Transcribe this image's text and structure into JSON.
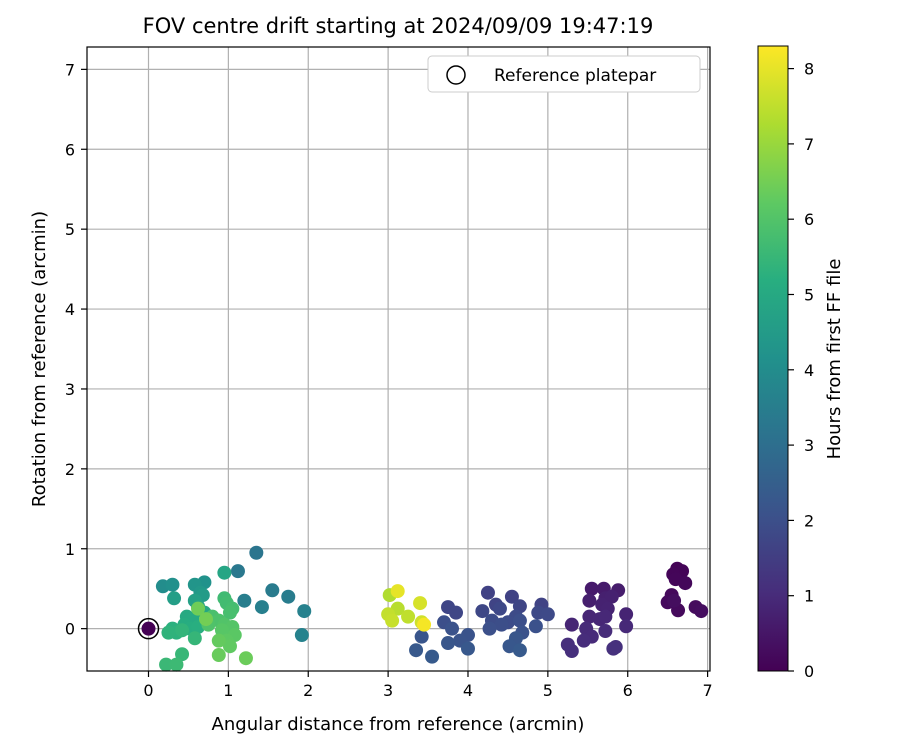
{
  "chart_data": {
    "type": "scatter",
    "title": "FOV centre drift starting at 2024/09/09 19:47:19",
    "xlabel": "Angular distance from reference (arcmin)",
    "ylabel": "Rotation from reference (arcmin)",
    "xlim": [
      -0.77,
      7.03
    ],
    "ylim": [
      -0.53,
      7.28
    ],
    "xticks": [
      0,
      1,
      2,
      3,
      4,
      5,
      6,
      7
    ],
    "yticks": [
      0,
      1,
      2,
      3,
      4,
      5,
      6,
      7
    ],
    "grid": true,
    "legend": {
      "position": "top-right",
      "entries": [
        "Reference platepar"
      ]
    },
    "reference_point": {
      "x": 0,
      "y": 0,
      "hours": 0
    },
    "colorbar": {
      "label": "Hours from first FF file",
      "colormap": "viridis",
      "range": [
        0,
        8.3
      ],
      "ticks": [
        0,
        1,
        2,
        3,
        4,
        5,
        6,
        7,
        8
      ]
    },
    "points": [
      {
        "x": 6.62,
        "y": 0.75,
        "c": 0.05
      },
      {
        "x": 6.68,
        "y": 0.72,
        "c": 0.08
      },
      {
        "x": 6.57,
        "y": 0.68,
        "c": 0.1
      },
      {
        "x": 6.6,
        "y": 0.62,
        "c": 0.12
      },
      {
        "x": 6.72,
        "y": 0.57,
        "c": 0.15
      },
      {
        "x": 6.55,
        "y": 0.42,
        "c": 0.18
      },
      {
        "x": 6.5,
        "y": 0.33,
        "c": 0.2
      },
      {
        "x": 6.63,
        "y": 0.23,
        "c": 0.22
      },
      {
        "x": 6.85,
        "y": 0.27,
        "c": 0.25
      },
      {
        "x": 6.92,
        "y": 0.22,
        "c": 0.28
      },
      {
        "x": 6.58,
        "y": 0.35,
        "c": 0.3
      },
      {
        "x": 5.55,
        "y": 0.5,
        "c": 0.6
      },
      {
        "x": 5.7,
        "y": 0.5,
        "c": 0.62
      },
      {
        "x": 5.88,
        "y": 0.48,
        "c": 0.65
      },
      {
        "x": 5.52,
        "y": 0.35,
        "c": 0.7
      },
      {
        "x": 5.72,
        "y": 0.38,
        "c": 0.72
      },
      {
        "x": 5.8,
        "y": 0.4,
        "c": 0.75
      },
      {
        "x": 5.68,
        "y": 0.3,
        "c": 0.78
      },
      {
        "x": 5.75,
        "y": 0.25,
        "c": 0.8
      },
      {
        "x": 5.98,
        "y": 0.18,
        "c": 0.82
      },
      {
        "x": 5.3,
        "y": 0.05,
        "c": 0.85
      },
      {
        "x": 5.52,
        "y": 0.15,
        "c": 0.88
      },
      {
        "x": 5.65,
        "y": 0.12,
        "c": 0.9
      },
      {
        "x": 5.72,
        "y": 0.15,
        "c": 0.92
      },
      {
        "x": 5.98,
        "y": 0.03,
        "c": 0.95
      },
      {
        "x": 5.48,
        "y": 0.0,
        "c": 0.98
      },
      {
        "x": 5.55,
        "y": -0.1,
        "c": 1.0
      },
      {
        "x": 5.72,
        "y": -0.03,
        "c": 1.02
      },
      {
        "x": 5.45,
        "y": -0.15,
        "c": 1.05
      },
      {
        "x": 5.25,
        "y": -0.2,
        "c": 1.08
      },
      {
        "x": 5.3,
        "y": -0.28,
        "c": 1.1
      },
      {
        "x": 5.85,
        "y": -0.23,
        "c": 1.12
      },
      {
        "x": 5.82,
        "y": -0.25,
        "c": 1.14
      },
      {
        "x": 4.25,
        "y": 0.45,
        "c": 1.6
      },
      {
        "x": 4.55,
        "y": 0.4,
        "c": 1.62
      },
      {
        "x": 4.92,
        "y": 0.3,
        "c": 1.65
      },
      {
        "x": 4.35,
        "y": 0.3,
        "c": 1.68
      },
      {
        "x": 4.65,
        "y": 0.28,
        "c": 1.7
      },
      {
        "x": 3.75,
        "y": 0.27,
        "c": 1.72
      },
      {
        "x": 3.85,
        "y": 0.2,
        "c": 1.75
      },
      {
        "x": 4.18,
        "y": 0.22,
        "c": 1.78
      },
      {
        "x": 4.4,
        "y": 0.25,
        "c": 1.8
      },
      {
        "x": 4.88,
        "y": 0.2,
        "c": 1.82
      },
      {
        "x": 5.0,
        "y": 0.18,
        "c": 1.85
      },
      {
        "x": 4.6,
        "y": 0.15,
        "c": 1.88
      },
      {
        "x": 4.3,
        "y": 0.1,
        "c": 1.9
      },
      {
        "x": 4.5,
        "y": 0.08,
        "c": 1.92
      },
      {
        "x": 4.42,
        "y": 0.05,
        "c": 1.95
      },
      {
        "x": 4.65,
        "y": 0.1,
        "c": 1.98
      },
      {
        "x": 3.7,
        "y": 0.08,
        "c": 2.0
      },
      {
        "x": 4.27,
        "y": 0.0,
        "c": 2.02
      },
      {
        "x": 4.85,
        "y": 0.03,
        "c": 2.05
      },
      {
        "x": 4.68,
        "y": -0.05,
        "c": 2.08
      },
      {
        "x": 3.8,
        "y": 0.0,
        "c": 2.1
      },
      {
        "x": 4.0,
        "y": -0.08,
        "c": 2.12
      },
      {
        "x": 3.9,
        "y": -0.15,
        "c": 2.15
      },
      {
        "x": 3.42,
        "y": -0.1,
        "c": 2.18
      },
      {
        "x": 3.75,
        "y": -0.18,
        "c": 2.2
      },
      {
        "x": 4.6,
        "y": -0.12,
        "c": 2.22
      },
      {
        "x": 4.52,
        "y": -0.22,
        "c": 2.25
      },
      {
        "x": 4.0,
        "y": -0.25,
        "c": 2.28
      },
      {
        "x": 3.35,
        "y": -0.27,
        "c": 2.3
      },
      {
        "x": 3.55,
        "y": -0.35,
        "c": 2.32
      },
      {
        "x": 4.65,
        "y": -0.27,
        "c": 2.35
      },
      {
        "x": 1.35,
        "y": 0.95,
        "c": 3.2
      },
      {
        "x": 1.12,
        "y": 0.72,
        "c": 3.3
      },
      {
        "x": 1.55,
        "y": 0.48,
        "c": 3.4
      },
      {
        "x": 1.75,
        "y": 0.4,
        "c": 3.45
      },
      {
        "x": 1.2,
        "y": 0.35,
        "c": 3.5
      },
      {
        "x": 1.42,
        "y": 0.27,
        "c": 3.55
      },
      {
        "x": 1.95,
        "y": 0.22,
        "c": 3.6
      },
      {
        "x": 1.92,
        "y": -0.08,
        "c": 3.65
      },
      {
        "x": 0.18,
        "y": 0.53,
        "c": 4.0
      },
      {
        "x": 0.3,
        "y": 0.55,
        "c": 4.1
      },
      {
        "x": 0.7,
        "y": 0.58,
        "c": 4.2
      },
      {
        "x": 0.58,
        "y": 0.55,
        "c": 4.3
      },
      {
        "x": 0.65,
        "y": 0.45,
        "c": 4.4
      },
      {
        "x": 0.68,
        "y": 0.42,
        "c": 4.5
      },
      {
        "x": 0.32,
        "y": 0.38,
        "c": 4.6
      },
      {
        "x": 0.58,
        "y": 0.35,
        "c": 4.7
      },
      {
        "x": 0.62,
        "y": 0.28,
        "c": 4.8
      },
      {
        "x": 0.95,
        "y": 0.7,
        "c": 4.85
      },
      {
        "x": 0.7,
        "y": 0.2,
        "c": 4.9
      },
      {
        "x": 0.48,
        "y": 0.15,
        "c": 5.0
      },
      {
        "x": 0.55,
        "y": 0.12,
        "c": 5.05
      },
      {
        "x": 0.45,
        "y": 0.05,
        "c": 5.1
      },
      {
        "x": 0.52,
        "y": 0.0,
        "c": 5.15
      },
      {
        "x": 0.62,
        "y": 0.02,
        "c": 5.2
      },
      {
        "x": 0.3,
        "y": 0.0,
        "c": 5.25
      },
      {
        "x": 0.35,
        "y": -0.05,
        "c": 5.3
      },
      {
        "x": 0.25,
        "y": -0.05,
        "c": 5.35
      },
      {
        "x": 0.42,
        "y": -0.02,
        "c": 5.4
      },
      {
        "x": 0.58,
        "y": -0.12,
        "c": 5.45
      },
      {
        "x": 0.42,
        "y": -0.32,
        "c": 5.5
      },
      {
        "x": 0.22,
        "y": -0.45,
        "c": 5.55
      },
      {
        "x": 0.35,
        "y": -0.45,
        "c": 5.6
      },
      {
        "x": 0.95,
        "y": 0.38,
        "c": 5.65
      },
      {
        "x": 0.98,
        "y": 0.32,
        "c": 5.7
      },
      {
        "x": 1.05,
        "y": 0.25,
        "c": 5.75
      },
      {
        "x": 1.02,
        "y": 0.2,
        "c": 5.8
      },
      {
        "x": 0.8,
        "y": 0.15,
        "c": 5.85
      },
      {
        "x": 0.88,
        "y": 0.1,
        "c": 5.9
      },
      {
        "x": 0.75,
        "y": 0.05,
        "c": 5.95
      },
      {
        "x": 0.95,
        "y": 0.05,
        "c": 6.0
      },
      {
        "x": 1.05,
        "y": 0.02,
        "c": 6.05
      },
      {
        "x": 0.92,
        "y": -0.02,
        "c": 6.1
      },
      {
        "x": 1.08,
        "y": -0.08,
        "c": 6.15
      },
      {
        "x": 0.98,
        "y": -0.15,
        "c": 6.2
      },
      {
        "x": 1.02,
        "y": -0.22,
        "c": 6.25
      },
      {
        "x": 0.88,
        "y": -0.15,
        "c": 6.3
      },
      {
        "x": 0.88,
        "y": -0.33,
        "c": 6.35
      },
      {
        "x": 1.22,
        "y": -0.37,
        "c": 6.4
      },
      {
        "x": 0.62,
        "y": 0.25,
        "c": 6.45
      },
      {
        "x": 0.72,
        "y": 0.12,
        "c": 6.5
      },
      {
        "x": 3.02,
        "y": 0.42,
        "c": 7.3
      },
      {
        "x": 3.12,
        "y": 0.25,
        "c": 7.4
      },
      {
        "x": 3.25,
        "y": 0.15,
        "c": 7.5
      },
      {
        "x": 3.0,
        "y": 0.18,
        "c": 7.55
      },
      {
        "x": 3.05,
        "y": 0.1,
        "c": 7.6
      },
      {
        "x": 3.42,
        "y": 0.08,
        "c": 7.7
      },
      {
        "x": 3.4,
        "y": 0.32,
        "c": 7.8
      },
      {
        "x": 3.12,
        "y": 0.47,
        "c": 8.0
      },
      {
        "x": 3.45,
        "y": 0.05,
        "c": 8.2
      }
    ]
  }
}
